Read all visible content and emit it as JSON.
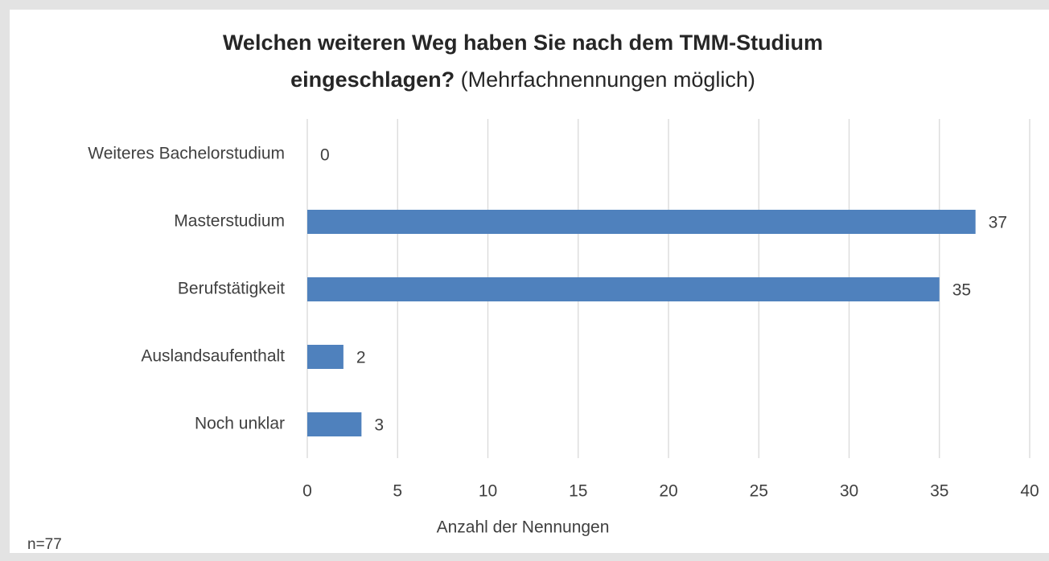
{
  "chart_data": {
    "type": "barh",
    "title": "Welchen weiteren Weg haben Sie nach dem TMM-Studium eingeschlagen?",
    "subtitle": "(Mehrfachnennungen möglich)",
    "categories": [
      "Weiteres Bachelorstudium",
      "Masterstudium",
      "Berufstätigkeit",
      "Auslandsaufenthalt",
      "Noch unklar"
    ],
    "values": [
      0,
      37,
      35,
      2,
      3
    ],
    "color": "#4f81bd",
    "xlim": [
      0,
      40
    ],
    "xticks": [
      0,
      5,
      10,
      15,
      20,
      25,
      30,
      35,
      40
    ],
    "xlabel": "Anzahl der Nennungen",
    "annotation": "n=77",
    "grid": true
  }
}
